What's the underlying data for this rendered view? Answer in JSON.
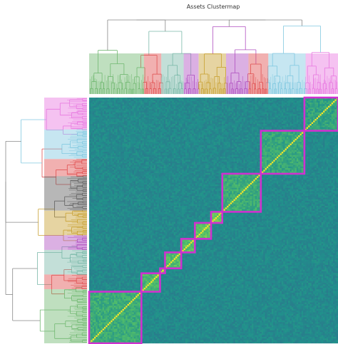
{
  "chart_data": {
    "type": "heatmap",
    "title": "Assets Clustermap",
    "xlabel": "",
    "ylabel": "",
    "colormap": "viridis",
    "color_range": [
      0,
      1
    ],
    "n_assets": 150,
    "dendrograms": [
      "top",
      "left"
    ],
    "cluster_colors": [
      "#e878e0",
      "#80c8e0",
      "#e05050",
      "#606060",
      "#b050c0",
      "#c8a030",
      "#7ab8a8",
      "#70b870"
    ],
    "highlight_color": "#d030d0",
    "blocks": [
      {
        "start": 0.0,
        "end": 0.21,
        "within": 0.62
      },
      {
        "start": 0.21,
        "end": 0.285,
        "within": 0.68
      },
      {
        "start": 0.285,
        "end": 0.305,
        "within": 0.7
      },
      {
        "start": 0.305,
        "end": 0.37,
        "within": 0.7
      },
      {
        "start": 0.37,
        "end": 0.425,
        "within": 0.72
      },
      {
        "start": 0.425,
        "end": 0.49,
        "within": 0.74
      },
      {
        "start": 0.49,
        "end": 0.535,
        "within": 0.76
      },
      {
        "start": 0.535,
        "end": 0.69,
        "within": 0.62
      },
      {
        "start": 0.69,
        "end": 0.865,
        "within": 0.6
      },
      {
        "start": 0.865,
        "end": 1.0,
        "within": 0.58
      }
    ]
  }
}
